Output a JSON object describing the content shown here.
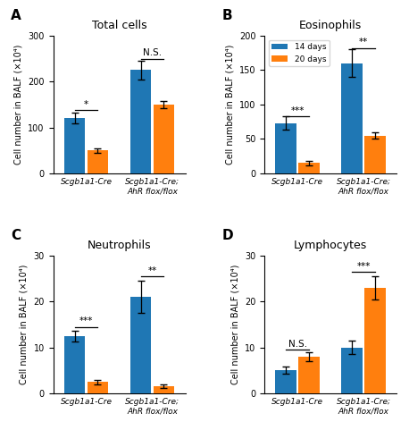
{
  "chart_data": [
    {
      "type": "bar",
      "title": "Total cells",
      "y_label": "Cell number in BALF (×10⁴)",
      "annotations": [
        {
          "text": "A"
        }
      ],
      "categories": [
        "Scgb1a1-Cre",
        "Scgb1a1-Cre;\nAhR flox/flox"
      ],
      "series": [
        {
          "name": "14 days",
          "values": [
            120,
            225
          ],
          "errors": [
            12,
            20
          ]
        },
        {
          "name": "20 days",
          "values": [
            50,
            150
          ],
          "errors": [
            5,
            8
          ]
        }
      ],
      "significance": [
        {
          "label": "*",
          "y": 138
        },
        {
          "label": "N.S.",
          "y": 250
        }
      ],
      "ylim": [
        0,
        300
      ],
      "yticks": [
        0,
        100,
        200,
        300
      ]
    },
    {
      "type": "bar",
      "title": "Eosinophils",
      "y_label": "Cell number in BALF (×10⁴)",
      "annotations": [
        {
          "text": "B"
        }
      ],
      "categories": [
        "Scgb1a1-Cre",
        "Scgb1a1-Cre;\nAhR flox/flox"
      ],
      "series": [
        {
          "name": "14 days",
          "values": [
            73,
            160
          ],
          "errors": [
            10,
            20
          ]
        },
        {
          "name": "20 days",
          "values": [
            15,
            55
          ],
          "errors": [
            3,
            4
          ]
        }
      ],
      "significance": [
        {
          "label": "***",
          "y": 83
        },
        {
          "label": "**",
          "y": 182
        }
      ],
      "ylim": [
        0,
        200
      ],
      "yticks": [
        0,
        50,
        100,
        150,
        200
      ],
      "legend": "upper left"
    },
    {
      "type": "bar",
      "title": "Neutrophils",
      "y_label": "Cell number in BALF (×10⁴)",
      "annotations": [
        {
          "text": "C"
        }
      ],
      "categories": [
        "Scgb1a1-Cre",
        "Scgb1a1-Cre;\nAhR flox/flox"
      ],
      "series": [
        {
          "name": "14 days",
          "values": [
            12.5,
            21
          ],
          "errors": [
            1.2,
            3.5
          ]
        },
        {
          "name": "20 days",
          "values": [
            2.5,
            1.5
          ],
          "errors": [
            0.5,
            0.4
          ]
        }
      ],
      "significance": [
        {
          "label": "***",
          "y": 14.5
        },
        {
          "label": "**",
          "y": 25.5
        }
      ],
      "ylim": [
        0,
        30
      ],
      "yticks": [
        0,
        10,
        20,
        30
      ]
    },
    {
      "type": "bar",
      "title": "Lymphocytes",
      "y_label": "Cell number in BALF (×10⁴)",
      "annotations": [
        {
          "text": "D"
        }
      ],
      "categories": [
        "Scgb1a1-Cre",
        "Scgb1a1-Cre;\nAhR flox/flox"
      ],
      "series": [
        {
          "name": "14 days",
          "values": [
            5,
            10
          ],
          "errors": [
            0.8,
            1.5
          ]
        },
        {
          "name": "20 days",
          "values": [
            8,
            23
          ],
          "errors": [
            1.0,
            2.5
          ]
        }
      ],
      "significance": [
        {
          "label": "N.S.",
          "y": 9.5
        },
        {
          "label": "***",
          "y": 26.5
        }
      ],
      "ylim": [
        0,
        30
      ],
      "yticks": [
        0,
        10,
        20,
        30
      ]
    }
  ]
}
